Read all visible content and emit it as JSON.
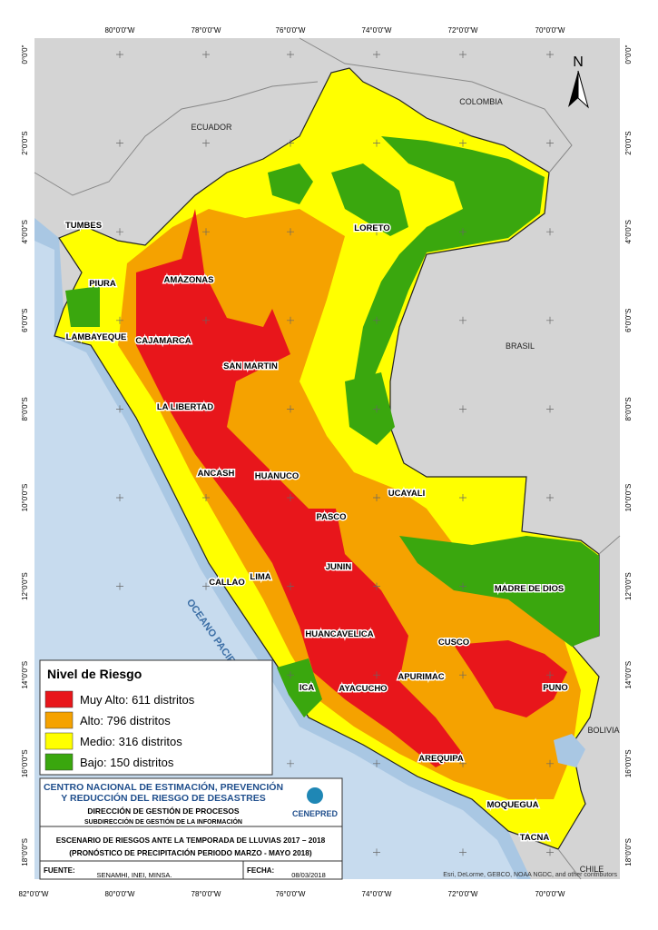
{
  "map": {
    "longitude_labels": [
      "82°0'0\"W",
      "80°0'0\"W",
      "78°0'0\"W",
      "76°0'0\"W",
      "74°0'0\"W",
      "72°0'0\"W",
      "70°0'0\"W"
    ],
    "latitude_labels": [
      "0°0'0\"",
      "2°0'0\"S",
      "4°0'0\"S",
      "6°0'0\"S",
      "8°0'0\"S",
      "10°0'0\"S",
      "12°0'0\"S",
      "14°0'0\"S",
      "16°0'0\"S",
      "18°0'0\"S"
    ],
    "north": "N",
    "countries": {
      "ecuador": "ECUADOR",
      "colombia": "COLOMBIA",
      "brasil": "BRASIL",
      "bolivia": "BOLIVIA",
      "chile": "CHILE",
      "ocean": "OCEANO PACIFICO"
    },
    "regions": [
      "TUMBES",
      "LORETO",
      "PIURA",
      "AMAZONAS",
      "LAMBAYEQUE",
      "CAJAMARCA",
      "SAN MARTIN",
      "LA LIBERTAD",
      "ANCASH",
      "HUANUCO",
      "UCAYALI",
      "PASCO",
      "CALLAO",
      "LIMA",
      "JUNIN",
      "MADRE DE DIOS",
      "HUANCAVELICA",
      "CUSCO",
      "APURIMAC",
      "ICA",
      "AYACUCHO",
      "PUNO",
      "AREQUIPA",
      "MOQUEGUA",
      "TACNA"
    ],
    "legend": {
      "title": "Nivel de Riesgo",
      "items": [
        {
          "label": "Muy Alto: 611 distritos",
          "color": "#e8161b"
        },
        {
          "label": "Alto: 796 distritos",
          "color": "#f5a200"
        },
        {
          "label": "Medio: 316 distritos",
          "color": "#ffff00"
        },
        {
          "label": "Bajo: 150 distritos",
          "color": "#3aa70e"
        }
      ]
    },
    "info": {
      "org_line1": "CENTRO NACIONAL DE ESTIMACIÓN, PREVENCIÓN",
      "org_line2": "Y REDUCCIÓN DEL RIESGO DE DESASTRES",
      "direction": "DIRECCIÓN DE GESTIÓN DE PROCESOS",
      "subdirection": "SUBDIRECCIÓN DE GESTIÓN DE LA INFORMACIÓN",
      "logo": "CENEPRED",
      "title_line1": "ESCENARIO DE RIESGOS ANTE LA TEMPORADA DE LLUVIAS 2017 – 2018",
      "title_line2": "(PRONÓSTICO DE PRECIPITACIÓN PERIODO MARZO - MAYO 2018)",
      "source_label": "FUENTE:",
      "source": "SENAMHI, INEI, MINSA.",
      "date_label": "FECHA:",
      "date": "08/03/2018"
    },
    "attribution": "Esri, DeLorme, GEBCO, NOAA NGDC, and other contributors"
  }
}
